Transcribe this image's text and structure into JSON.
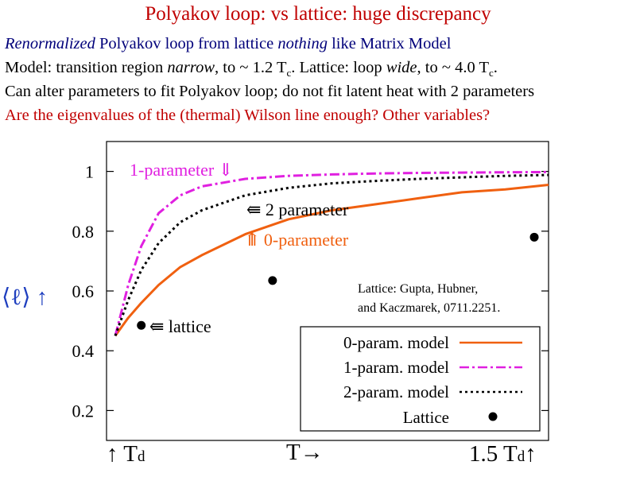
{
  "title": "Polyakov loop: vs lattice: huge discrepancy",
  "text_lines": {
    "l1": {
      "a": "Renormalized",
      "b": " Polyakov loop from lattice ",
      "c": "nothing",
      "d": " like Matrix Model"
    },
    "l2": {
      "a": "Model: transition region ",
      "b": "narrow",
      "c": ", to ~ 1.2 T",
      "d": "c",
      "e": ". Lattice: loop ",
      "f": "wide",
      "g": ", to ~ 4.0 T",
      "h": "c",
      "i": "."
    },
    "l3": "Can alter parameters to fit Polyakov loop; do not fit latent heat with 2 parameters",
    "l4": "Are the eigenvalues of the (thermal) Wilson line enough? Other variables?"
  },
  "colors": {
    "zero": "#f06010",
    "one": "#e020e0",
    "two": "#000000",
    "lattice": "#000000",
    "ylabel": "#1f3fbf"
  },
  "chart_data": {
    "type": "line",
    "x": [
      0,
      0.03,
      0.06,
      0.1,
      0.15,
      0.2,
      0.3,
      0.4,
      0.5,
      0.6,
      0.7,
      0.8,
      0.9,
      1.0
    ],
    "xlim": [
      0,
      1
    ],
    "ylim": [
      0.1,
      1.1
    ],
    "yticks": [
      0.2,
      0.4,
      0.6,
      0.8,
      1.0
    ],
    "ytick_labels": [
      "0.2",
      "0.4",
      "0.6",
      "0.8",
      "1"
    ],
    "ylabel": "⟨ℓ⟩ ↑",
    "xlabels": {
      "left": "↑ T",
      "left_sub": "d",
      "center": "T→",
      "right": "1.5 T",
      "right_sub": "d",
      "right_arrow": "↑"
    },
    "series": [
      {
        "name": "0-param. model",
        "style": "solid",
        "values": [
          0.45,
          0.51,
          0.56,
          0.62,
          0.68,
          0.72,
          0.79,
          0.84,
          0.87,
          0.89,
          0.91,
          0.93,
          0.94,
          0.955
        ]
      },
      {
        "name": "1-parameter model",
        "style": "dashdot",
        "values": [
          0.45,
          0.62,
          0.75,
          0.86,
          0.92,
          0.95,
          0.975,
          0.985,
          0.99,
          0.993,
          0.995,
          0.996,
          0.997,
          0.998
        ]
      },
      {
        "name": "2-param. model",
        "style": "dotted",
        "values": [
          0.45,
          0.57,
          0.67,
          0.76,
          0.83,
          0.87,
          0.92,
          0.945,
          0.96,
          0.968,
          0.975,
          0.98,
          0.985,
          0.988
        ]
      }
    ],
    "lattice_points": {
      "name": "Lattice",
      "x": [
        0.06,
        0.363,
        0.967
      ],
      "y": [
        0.485,
        0.635,
        0.78
      ]
    },
    "legend": {
      "position": "bottom-right",
      "entries": [
        "0-param. model",
        "1-param. model",
        "2-param. model",
        "Lattice"
      ]
    },
    "annotations": {
      "one_param": "1-parameter ⇓",
      "two_param": "⇚ 2 parameter",
      "zero_param": "⤊ 0-parameter",
      "lattice": "⇚ lattice",
      "credit1": "Lattice: Gupta, Hubner,",
      "credit2": "and Kaczmarek,  0711.2251."
    }
  }
}
